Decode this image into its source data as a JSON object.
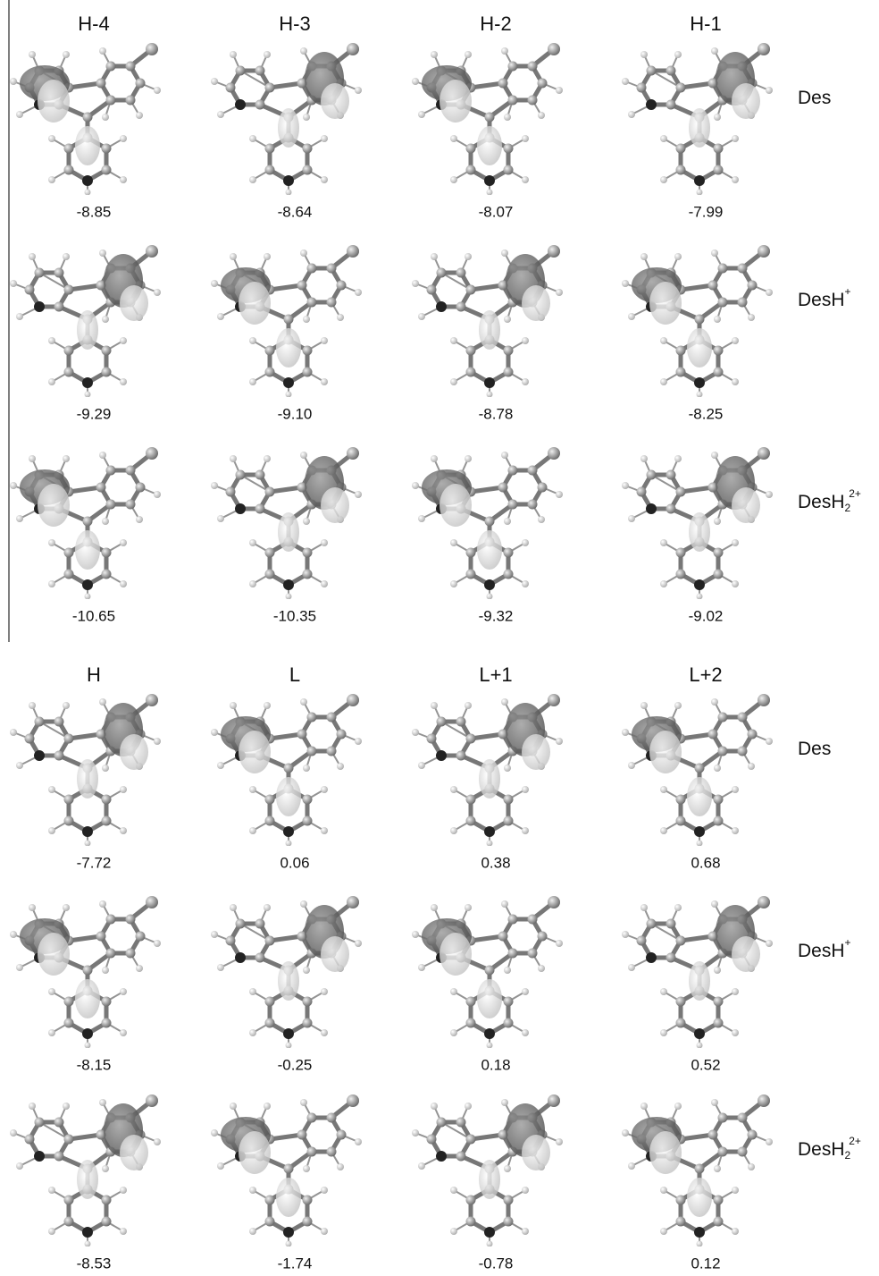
{
  "panels": [
    {
      "columns": [
        "H-4",
        "H-3",
        "H-2",
        "H-1"
      ],
      "rows": [
        {
          "label": {
            "base": "Des"
          },
          "energies": [
            "-8.85",
            "-8.64",
            "-8.07",
            "-7.99"
          ]
        },
        {
          "label": {
            "base": "DesH",
            "sup": "+"
          },
          "energies": [
            "-9.29",
            "-9.10",
            "-8.78",
            "-8.25"
          ]
        },
        {
          "label": {
            "base": "DesH",
            "sub": "2",
            "sup": "2+"
          },
          "energies": [
            "-10.65",
            "-10.35",
            "-9.32",
            "-9.02"
          ]
        }
      ]
    },
    {
      "columns": [
        "H",
        "L",
        "L+1",
        "L+2"
      ],
      "rows": [
        {
          "label": {
            "base": "Des"
          },
          "energies": [
            "-7.72",
            "0.06",
            "0.38",
            "0.68"
          ]
        },
        {
          "label": {
            "base": "DesH",
            "sup": "+"
          },
          "energies": [
            "-8.15",
            "-0.25",
            "0.18",
            "0.52"
          ]
        },
        {
          "label": {
            "base": "DesH",
            "sub": "2",
            "sup": "2+"
          },
          "energies": [
            "-8.53",
            "-1.74",
            "-0.78",
            "0.12"
          ]
        }
      ]
    }
  ]
}
